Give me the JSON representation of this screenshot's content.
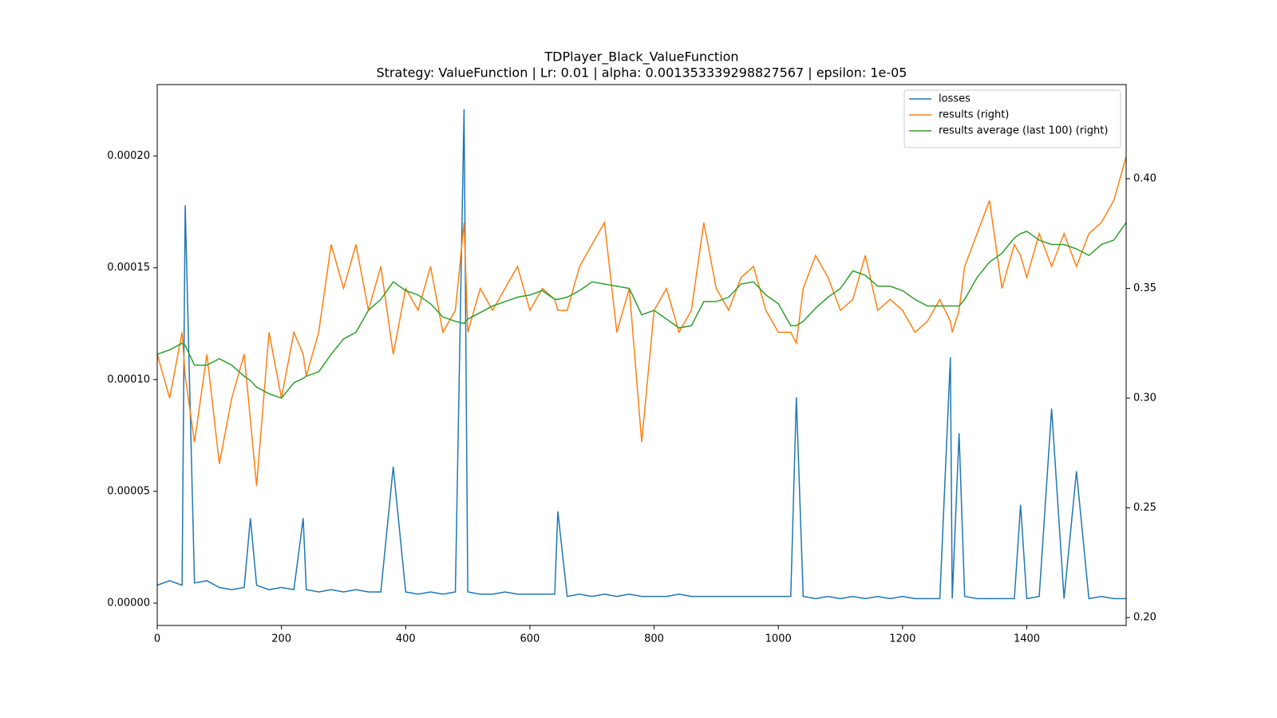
{
  "chart_data": {
    "type": "line",
    "title": "TDPlayer_Black_ValueFunction",
    "subtitle": "Strategy: ValueFunction | Lr: 0.01 | alpha: 0.001353339298827567 | epsilon: 1e-05",
    "x": [
      0,
      20,
      40,
      45,
      60,
      80,
      100,
      120,
      140,
      150,
      160,
      180,
      200,
      220,
      235,
      240,
      260,
      280,
      300,
      320,
      340,
      360,
      380,
      400,
      420,
      440,
      460,
      480,
      494,
      500,
      520,
      540,
      560,
      580,
      600,
      620,
      640,
      645,
      660,
      680,
      700,
      720,
      740,
      760,
      780,
      800,
      820,
      840,
      860,
      880,
      900,
      920,
      940,
      960,
      980,
      1000,
      1020,
      1029,
      1040,
      1060,
      1080,
      1100,
      1120,
      1140,
      1160,
      1180,
      1200,
      1220,
      1240,
      1260,
      1277,
      1280,
      1291,
      1300,
      1320,
      1340,
      1360,
      1380,
      1390,
      1400,
      1420,
      1440,
      1460,
      1480,
      1500,
      1520,
      1540,
      1560
    ],
    "series": [
      {
        "name": "losses",
        "color": "#1f77b4",
        "axis": "y",
        "values": [
          8e-06,
          1e-05,
          8e-06,
          0.000178,
          9e-06,
          1e-05,
          7e-06,
          6e-06,
          7e-06,
          3.8e-05,
          8e-06,
          6e-06,
          7e-06,
          6e-06,
          3.8e-05,
          6e-06,
          5e-06,
          6e-06,
          5e-06,
          6e-06,
          5e-06,
          5e-06,
          6.1e-05,
          5e-06,
          4e-06,
          5e-06,
          4e-06,
          5e-06,
          0.000221,
          5e-06,
          4e-06,
          4e-06,
          5e-06,
          4e-06,
          4e-06,
          4e-06,
          4e-06,
          4.1e-05,
          3e-06,
          4e-06,
          3e-06,
          4e-06,
          3e-06,
          4e-06,
          3e-06,
          3e-06,
          3e-06,
          4e-06,
          3e-06,
          3e-06,
          3e-06,
          3e-06,
          3e-06,
          3e-06,
          3e-06,
          3e-06,
          3e-06,
          9.2e-05,
          3e-06,
          2e-06,
          3e-06,
          2e-06,
          3e-06,
          2e-06,
          3e-06,
          2e-06,
          3e-06,
          2e-06,
          2e-06,
          2e-06,
          0.00011,
          2e-06,
          7.6e-05,
          3e-06,
          2e-06,
          2e-06,
          2e-06,
          2e-06,
          4.4e-05,
          2e-06,
          3e-06,
          8.7e-05,
          2e-06,
          5.9e-05,
          2e-06,
          3e-06,
          2e-06,
          2e-06
        ]
      },
      {
        "name": "results (right)",
        "color": "#ff7f0e",
        "axis": "y2",
        "values": [
          0.32,
          0.3,
          0.33,
          0.31,
          0.28,
          0.32,
          0.27,
          0.3,
          0.32,
          0.29,
          0.26,
          0.33,
          0.3,
          0.33,
          0.32,
          0.31,
          0.33,
          0.37,
          0.35,
          0.37,
          0.34,
          0.36,
          0.32,
          0.35,
          0.34,
          0.36,
          0.33,
          0.34,
          0.38,
          0.33,
          0.35,
          0.34,
          0.35,
          0.36,
          0.34,
          0.35,
          0.345,
          0.34,
          0.34,
          0.36,
          0.37,
          0.38,
          0.33,
          0.35,
          0.28,
          0.34,
          0.35,
          0.33,
          0.34,
          0.38,
          0.35,
          0.34,
          0.355,
          0.36,
          0.34,
          0.33,
          0.33,
          0.325,
          0.35,
          0.365,
          0.355,
          0.34,
          0.345,
          0.365,
          0.34,
          0.345,
          0.34,
          0.33,
          0.335,
          0.345,
          0.335,
          0.33,
          0.34,
          0.36,
          0.375,
          0.39,
          0.35,
          0.37,
          0.365,
          0.355,
          0.375,
          0.36,
          0.375,
          0.36,
          0.375,
          0.38,
          0.39,
          0.41
        ]
      },
      {
        "name": "results average (last 100) (right)",
        "color": "#2ca02c",
        "axis": "y2",
        "values": [
          0.32,
          0.322,
          0.325,
          0.324,
          0.315,
          0.315,
          0.318,
          0.315,
          0.31,
          0.308,
          0.305,
          0.302,
          0.3,
          0.307,
          0.309,
          0.31,
          0.312,
          0.32,
          0.327,
          0.33,
          0.34,
          0.345,
          0.353,
          0.349,
          0.347,
          0.343,
          0.337,
          0.335,
          0.334,
          0.336,
          0.339,
          0.342,
          0.344,
          0.346,
          0.347,
          0.349,
          0.345,
          0.345,
          0.346,
          0.349,
          0.353,
          0.352,
          0.351,
          0.35,
          0.338,
          0.34,
          0.336,
          0.332,
          0.333,
          0.344,
          0.344,
          0.346,
          0.352,
          0.353,
          0.347,
          0.343,
          0.333,
          0.333,
          0.335,
          0.341,
          0.346,
          0.35,
          0.358,
          0.356,
          0.351,
          0.351,
          0.349,
          0.345,
          0.342,
          0.342,
          0.342,
          0.342,
          0.342,
          0.345,
          0.355,
          0.362,
          0.366,
          0.373,
          0.375,
          0.376,
          0.372,
          0.37,
          0.37,
          0.368,
          0.365,
          0.37,
          0.372,
          0.38
        ]
      }
    ],
    "xlim": [
      0,
      1560
    ],
    "xticks": [
      0,
      200,
      400,
      600,
      800,
      1000,
      1200,
      1400
    ],
    "ylim": [
      -1e-05,
      0.000232
    ],
    "yticks": [
      {
        "value": 0,
        "label": "0.00000"
      },
      {
        "value": 5e-05,
        "label": "0.00005"
      },
      {
        "value": 0.0001,
        "label": "0.00010"
      },
      {
        "value": 0.00015,
        "label": "0.00015"
      },
      {
        "value": 0.0002,
        "label": "0.00020"
      }
    ],
    "y2lim": [
      0.1964,
      0.4429
    ],
    "y2ticks": [
      {
        "value": 0.2,
        "label": "0.20"
      },
      0.25,
      {
        "value": 0.3,
        "label": "0.30"
      },
      0.35,
      {
        "value": 0.4,
        "label": "0.40"
      }
    ],
    "legend": "upper right",
    "grid": false
  }
}
